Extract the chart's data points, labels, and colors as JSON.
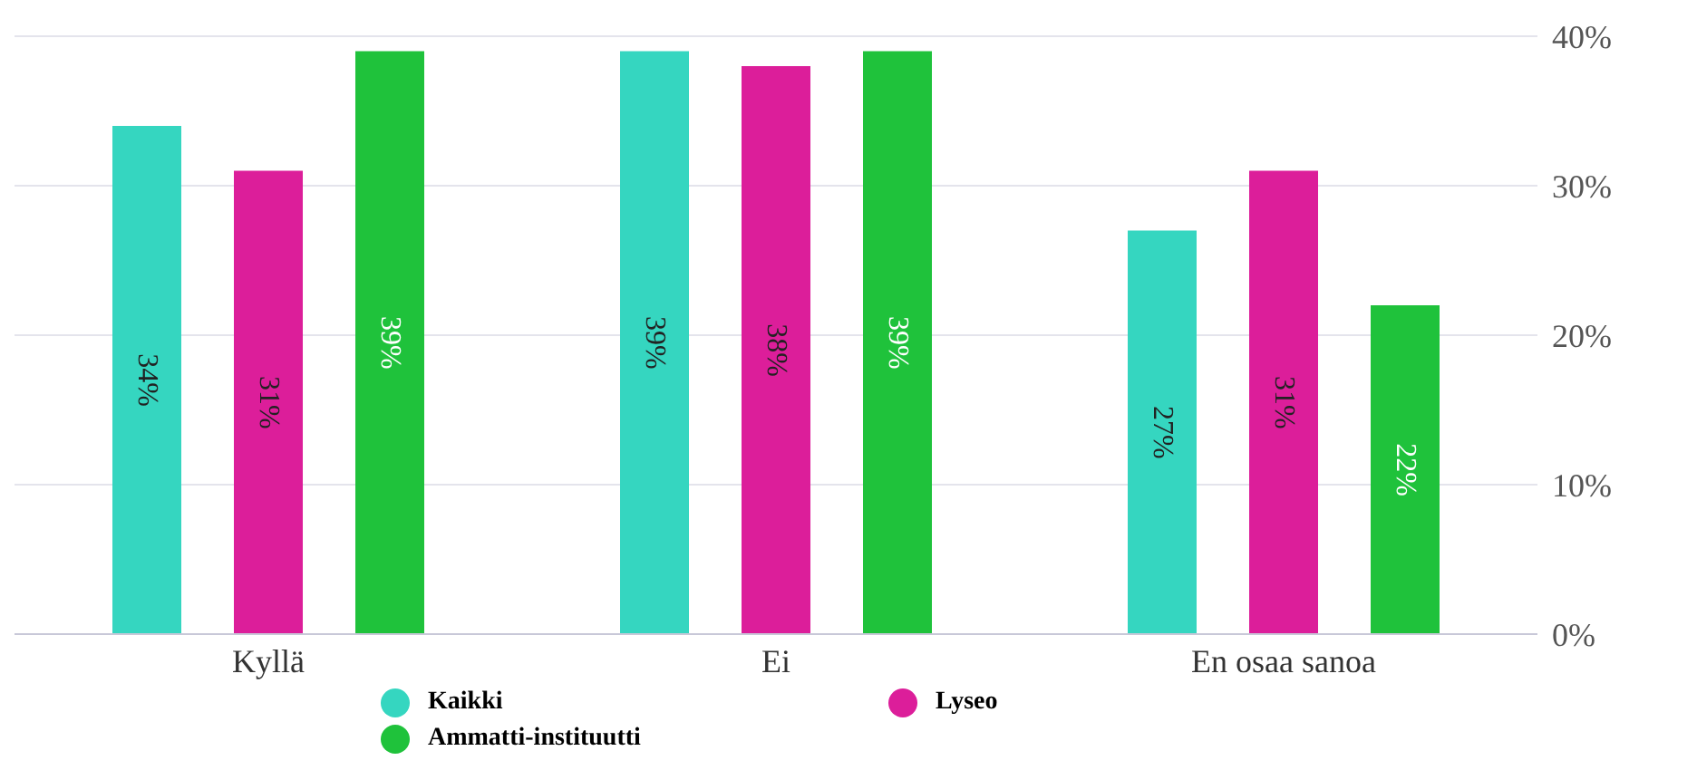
{
  "chart_data": {
    "type": "bar",
    "categories": [
      "Kyllä",
      "Ei",
      "En osaa sanoa"
    ],
    "series": [
      {
        "name": "Kaikki",
        "color": "#35d6c0",
        "values": [
          34,
          39,
          27
        ],
        "value_labels": [
          "34%",
          "39%",
          "27%"
        ]
      },
      {
        "name": "Lyseo",
        "color": "#dc1e9a",
        "values": [
          31,
          38,
          31
        ],
        "value_labels": [
          "31%",
          "38%",
          "31%"
        ]
      },
      {
        "name": "Ammatti-instituutti",
        "color": "#1fc23b",
        "values": [
          39,
          39,
          22
        ],
        "value_labels": [
          "39%",
          "39%",
          "22%"
        ]
      }
    ],
    "ylim": [
      0,
      40
    ],
    "yticks": [
      {
        "value": 0,
        "label": "0%"
      },
      {
        "value": 10,
        "label": "10%"
      },
      {
        "value": 20,
        "label": "20%"
      },
      {
        "value": 30,
        "label": "30%"
      },
      {
        "value": 40,
        "label": "40%"
      }
    ],
    "grid": "y",
    "legend": "bottom"
  }
}
